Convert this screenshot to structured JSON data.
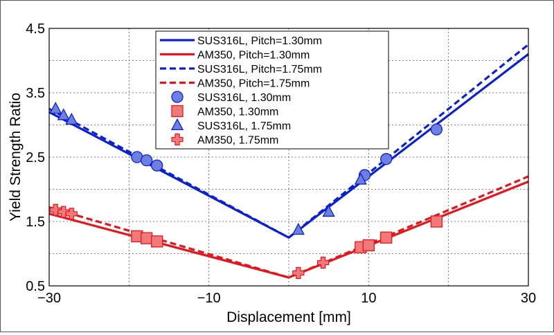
{
  "chart_data": {
    "type": "line",
    "xlabel": "Displacement [mm]",
    "ylabel": "Yield Strength Ratio",
    "xlim": [
      -30,
      30
    ],
    "ylim": [
      0.5,
      4.5
    ],
    "xticks": [
      -30,
      -10,
      10,
      30
    ],
    "xtick_labels": [
      "−30",
      "−10",
      "10",
      "30"
    ],
    "yticks": [
      0.5,
      1.5,
      2.5,
      3.5,
      4.5
    ],
    "ytick_labels": [
      "0.5",
      "1.5",
      "2.5",
      "3.5",
      "4.5"
    ],
    "grid": true,
    "legend_position": "top-center",
    "colors": {
      "blue": "#0b1fd6",
      "red": "#e8141c",
      "blue_marker_fill": "#6f7fe0",
      "red_marker_fill": "#f07a7a"
    },
    "series": [
      {
        "name": "SUS316L, Pitch=1.30mm",
        "kind": "line",
        "color": "blue",
        "dash": "solid",
        "x": [
          -30,
          0,
          30
        ],
        "y": [
          3.2,
          1.25,
          4.1
        ]
      },
      {
        "name": "AM350, Pitch=1.30mm",
        "kind": "line",
        "color": "red",
        "dash": "solid",
        "x": [
          -30,
          0,
          30
        ],
        "y": [
          1.62,
          0.63,
          2.12
        ]
      },
      {
        "name": "SUS316L, Pitch=1.75mm",
        "kind": "line",
        "color": "blue",
        "dash": "dashed",
        "x": [
          -30,
          0,
          30
        ],
        "y": [
          3.25,
          1.25,
          4.25
        ]
      },
      {
        "name": "AM350, Pitch=1.75mm",
        "kind": "line",
        "color": "red",
        "dash": "dashed",
        "x": [
          -30,
          0,
          30
        ],
        "y": [
          1.72,
          0.63,
          2.2
        ]
      },
      {
        "name": "SUS316L, 1.30mm",
        "kind": "marker",
        "marker": "circle",
        "color": "blue",
        "x": [
          -19,
          -17.8,
          -16.5,
          9.5,
          12.2,
          18.5
        ],
        "y": [
          2.5,
          2.45,
          2.37,
          2.22,
          2.47,
          2.93
        ]
      },
      {
        "name": "AM350, 1.30mm",
        "kind": "marker",
        "marker": "square",
        "color": "red",
        "x": [
          -19,
          -17.8,
          -16.5,
          9,
          10,
          12.2,
          18.5
        ],
        "y": [
          1.27,
          1.24,
          1.19,
          1.1,
          1.13,
          1.25,
          1.5
        ]
      },
      {
        "name": "SUS316L, 1.75mm",
        "kind": "marker",
        "marker": "triangle",
        "color": "blue",
        "x": [
          -29.2,
          -28.2,
          -27.2,
          1.2,
          5,
          9
        ],
        "y": [
          3.25,
          3.15,
          3.08,
          1.37,
          1.65,
          2.15
        ]
      },
      {
        "name": "AM350, 1.75mm",
        "kind": "marker",
        "marker": "plus",
        "color": "red",
        "x": [
          -29.2,
          -28.2,
          -27.2,
          1.2,
          4.3
        ],
        "y": [
          1.68,
          1.65,
          1.62,
          0.7,
          0.86
        ]
      }
    ]
  }
}
